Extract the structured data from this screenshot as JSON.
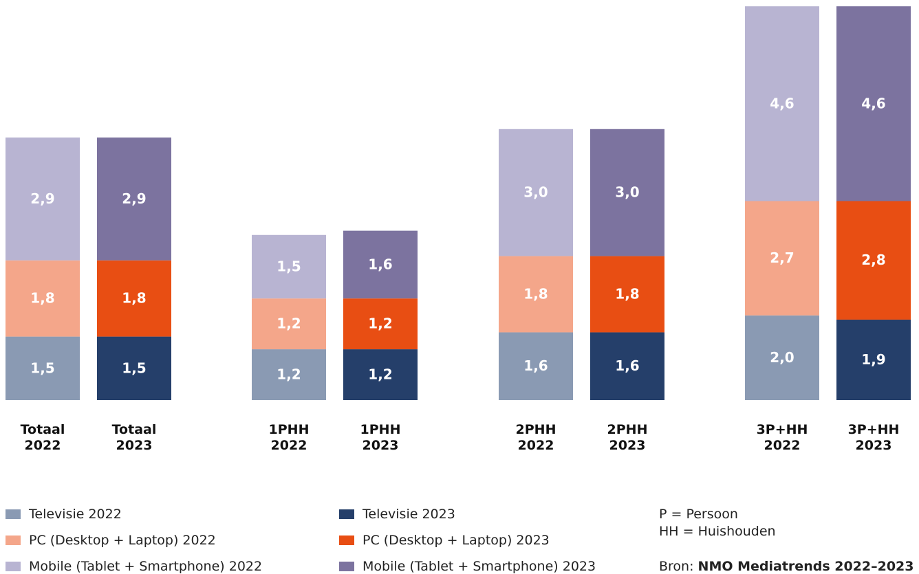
{
  "chart_data": {
    "type": "stacked_bar",
    "categories": [
      "Totaal 2022",
      "Totaal 2023",
      "1PHH 2022",
      "1PHH 2023",
      "2PHH 2022",
      "2PHH 2023",
      "3P+HH 2022",
      "3P+HH 2023"
    ],
    "ylim": [
      0,
      9.4
    ],
    "series": [
      {
        "name": "Televisie 2022",
        "color": "#8a9ab3",
        "values": [
          1.5,
          null,
          1.2,
          null,
          1.6,
          null,
          2.0,
          null
        ],
        "value_labels": [
          "1,5",
          null,
          "1,2",
          null,
          "1,6",
          null,
          "2,0",
          null
        ]
      },
      {
        "name": "PC (Desktop + Laptop) 2022",
        "color": "#f4a68a",
        "values": [
          1.8,
          null,
          1.2,
          null,
          1.8,
          null,
          2.7,
          null
        ],
        "value_labels": [
          "1,8",
          null,
          "1,2",
          null,
          "1,8",
          null,
          "2,7",
          null
        ]
      },
      {
        "name": "Mobile (Tablet + Smartphone) 2022",
        "color": "#b8b4d2",
        "values": [
          2.9,
          null,
          1.5,
          null,
          3.0,
          null,
          4.6,
          null
        ],
        "value_labels": [
          "2,9",
          null,
          "1,5",
          null,
          "3,0",
          null,
          "4,6",
          null
        ]
      },
      {
        "name": "Televisie 2023",
        "color": "#253f6a",
        "values": [
          null,
          1.5,
          null,
          1.2,
          null,
          1.6,
          null,
          1.9
        ],
        "value_labels": [
          null,
          "1,5",
          null,
          "1,2",
          null,
          "1,6",
          null,
          "1,9"
        ]
      },
      {
        "name": "PC (Desktop + Laptop) 2023",
        "color": "#e84e13",
        "values": [
          null,
          1.8,
          null,
          1.2,
          null,
          1.8,
          null,
          2.8
        ],
        "value_labels": [
          null,
          "1,8",
          null,
          "1,2",
          null,
          "1,8",
          null,
          "2,8"
        ]
      },
      {
        "name": "Mobile (Tablet + Smartphone) 2023",
        "color": "#7c739f",
        "values": [
          null,
          2.9,
          null,
          1.6,
          null,
          3.0,
          null,
          4.6
        ],
        "value_labels": [
          null,
          "2,9",
          null,
          "1,6",
          null,
          "3,0",
          null,
          "4,6"
        ]
      }
    ],
    "notes": [
      "P = Persoon",
      "HH = Huishouden"
    ],
    "source": {
      "label": "Bron:",
      "text": "NMO Mediatrends 2022–2023"
    }
  }
}
